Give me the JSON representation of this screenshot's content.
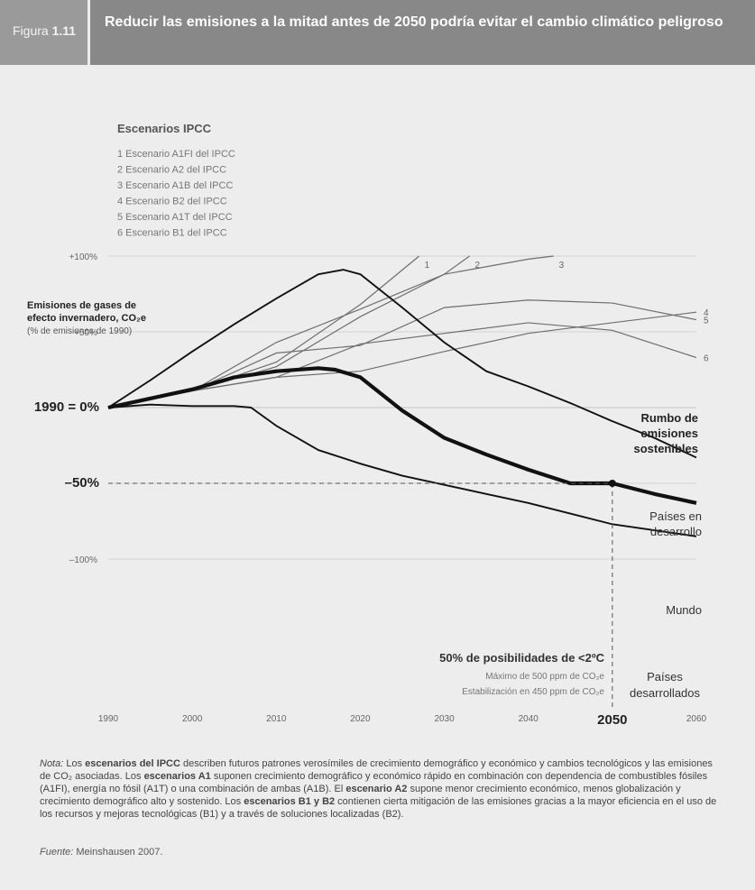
{
  "header": {
    "fig_prefix": "Figura",
    "fig_number": "1.11",
    "title": "Reducir las emisiones a la mitad antes de 2050 podría evitar el cambio climático peligroso"
  },
  "chart_data": {
    "type": "line",
    "x_ticks": [
      1990,
      2000,
      2010,
      2020,
      2030,
      2040,
      2050,
      2060
    ],
    "y_ticks": [
      {
        "value": 100,
        "label": "+100%"
      },
      {
        "value": 50,
        "label": "+50%"
      },
      {
        "value": 0,
        "label": "1990 = 0%"
      },
      {
        "value": -50,
        "label": "–50%"
      },
      {
        "value": -100,
        "label": "–100%"
      }
    ],
    "xlim": [
      1990,
      2060
    ],
    "ylim": [
      -100,
      100
    ],
    "ylabel": {
      "line1": "Emisiones de gases de",
      "line2": "efecto invernadero, CO₂e",
      "line3": "(% de emisiones de 1990)"
    },
    "legend_title": "Escenarios IPCC",
    "legend_items": [
      "1 Escenario A1FI del IPCC",
      "2 Escenario A2 del IPCC",
      "3 Escenario A1B del IPCC",
      "4 Escenario B2 del IPCC",
      "5 Escenario A1T del IPCC",
      "6 Escenario B1 del IPCC"
    ],
    "ipcc_series": [
      {
        "name": "1",
        "x": [
          1990,
          2000,
          2010,
          2020,
          2027
        ],
        "y": [
          0,
          11,
          30,
          68,
          100
        ]
      },
      {
        "name": "2",
        "x": [
          1990,
          2000,
          2010,
          2020,
          2030,
          2033
        ],
        "y": [
          0,
          11,
          27,
          60,
          88,
          100
        ]
      },
      {
        "name": "3",
        "x": [
          1990,
          2000,
          2010,
          2020,
          2030,
          2040,
          2043
        ],
        "y": [
          0,
          11,
          43,
          65,
          88,
          98,
          100
        ]
      },
      {
        "name": "4",
        "x": [
          1990,
          2000,
          2010,
          2020,
          2030,
          2040,
          2050,
          2060
        ],
        "y": [
          0,
          11,
          20,
          24,
          37,
          49,
          56,
          63
        ]
      },
      {
        "name": "5",
        "x": [
          1990,
          2000,
          2010,
          2020,
          2030,
          2040,
          2050,
          2060
        ],
        "y": [
          0,
          11,
          36,
          41,
          66,
          71,
          69,
          58
        ]
      },
      {
        "name": "6",
        "x": [
          1990,
          2000,
          2010,
          2020,
          2030,
          2040,
          2050,
          2060
        ],
        "y": [
          0,
          11,
          20,
          42,
          49,
          56,
          51,
          33
        ]
      }
    ],
    "main_series": [
      {
        "name": "Países en desarrollo",
        "x": [
          1990,
          1995,
          2000,
          2005,
          2010,
          2015,
          2018,
          2020,
          2025,
          2030,
          2035,
          2040,
          2045,
          2050,
          2055,
          2060
        ],
        "y": [
          0,
          18,
          37,
          55,
          72,
          88,
          91,
          88,
          66,
          43,
          24,
          14,
          3,
          -9,
          -20,
          -33
        ],
        "style": "medium"
      },
      {
        "name": "Mundo",
        "x": [
          1990,
          1995,
          2000,
          2005,
          2010,
          2015,
          2017,
          2020,
          2025,
          2030,
          2035,
          2040,
          2045,
          2050,
          2055,
          2060
        ],
        "y": [
          0,
          6,
          12,
          20,
          24,
          26,
          25,
          20,
          -2,
          -20,
          -31,
          -41,
          -50,
          -50,
          -57,
          -63
        ],
        "style": "thick"
      },
      {
        "name": "Países desarrollados",
        "x": [
          1990,
          1995,
          2000,
          2005,
          2007,
          2010,
          2015,
          2020,
          2025,
          2030,
          2035,
          2040,
          2045,
          2050,
          2055,
          2060
        ],
        "y": [
          0,
          2,
          1,
          1,
          0,
          -12,
          -28,
          -37,
          -45,
          -51,
          -57,
          -63,
          -70,
          -77,
          -81,
          -85
        ],
        "style": "medium"
      }
    ],
    "marker": {
      "x": 2050,
      "y": -50
    },
    "labels": {
      "sustainable": [
        "Rumbo de",
        "emisiones",
        "sostenibles"
      ],
      "developing": [
        "Países en",
        "desarrollo"
      ],
      "world": "Mundo",
      "developed": [
        "Países",
        "desarrollados"
      ],
      "chance_title": "50% de posibilidades de <2ºC",
      "chance_line1": "Máximo de 500 ppm de CO₂e",
      "chance_line2": "Estabilización en 450 ppm de CO₂e"
    }
  },
  "note": {
    "label": "Nota:",
    "t1": "Los ",
    "b1": "escenarios del IPCC",
    "t2": " describen futuros patrones verosímiles de crecimiento demográfico y económico y cambios tecnológicos y las emisiones de CO₂ asociadas. Los ",
    "b2": "escenarios A1",
    "t3": " suponen crecimiento demográfico y económico rápido en combinación con dependencia de combustibles fósiles (A1FI), energía no fósil (A1T) o una combinación de ambas (A1B). El ",
    "b3": "escenario A2",
    "t4": " supone menor crecimiento económico, menos globalización y crecimiento demográfico alto y sostenido. Los ",
    "b4": "escenarios B1 y B2",
    "t5": " contienen cierta mitigación de las emisiones gracias a la mayor eficiencia en el uso de los recursos y mejoras tecnológicas (B1) y a través de soluciones localizadas (B2)."
  },
  "source": {
    "label": "Fuente:",
    "text": " Meinshausen 2007."
  }
}
